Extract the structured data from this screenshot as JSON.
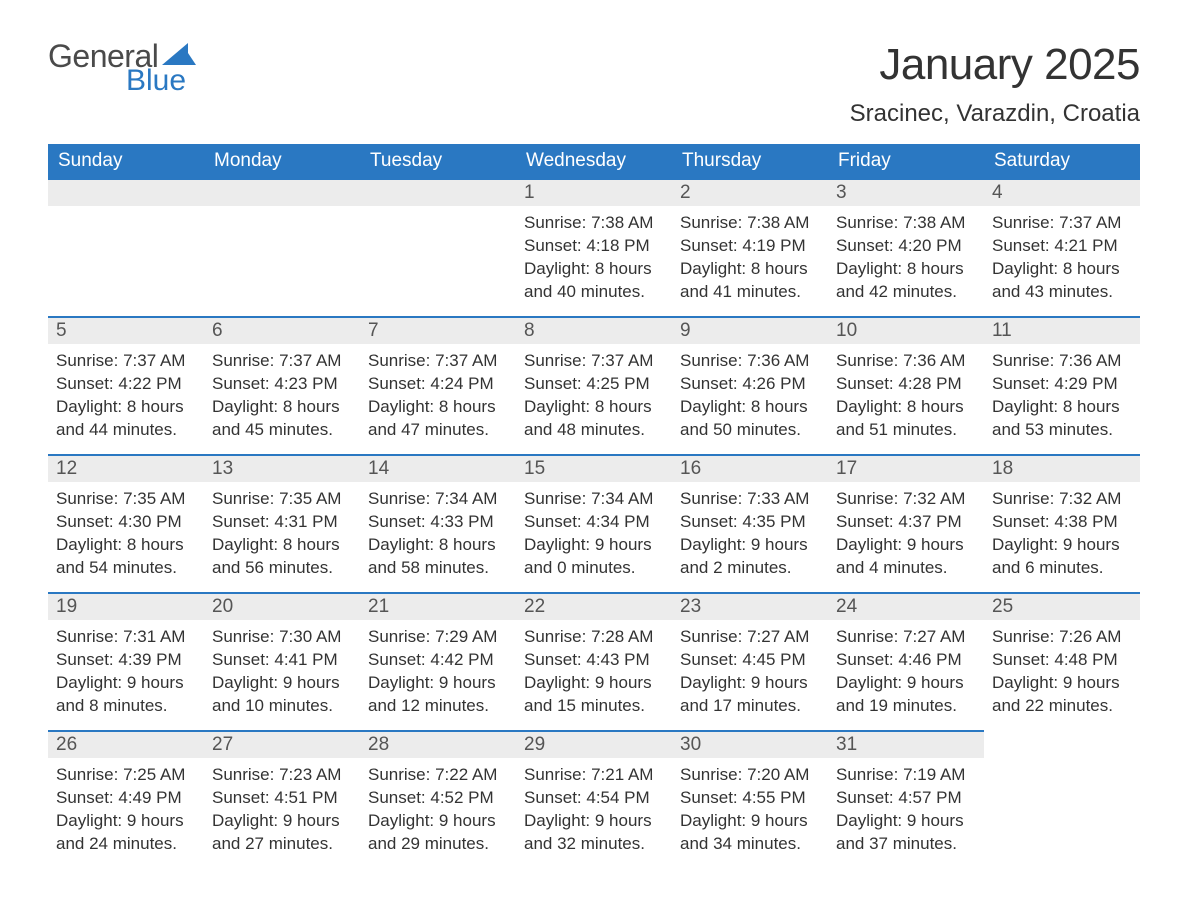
{
  "brand": {
    "general": "General",
    "blue": "Blue",
    "sail_color": "#2a78c2"
  },
  "header": {
    "month_title": "January 2025",
    "location": "Sracinec, Varazdin, Croatia"
  },
  "colors": {
    "header_bg": "#2a78c2",
    "header_text": "#ffffff",
    "daynum_bg": "#ececec",
    "daynum_border": "#2a78c2",
    "body_text": "#333333",
    "page_bg": "#ffffff"
  },
  "typography": {
    "title_fontsize": 44,
    "location_fontsize": 24,
    "weekday_fontsize": 19,
    "daynum_fontsize": 19,
    "body_fontsize": 17,
    "font_family": "Segoe UI"
  },
  "calendar": {
    "type": "calendar-table",
    "columns": 7,
    "rows": 5,
    "aspect_ratio": "1188:918",
    "weekdays": [
      "Sunday",
      "Monday",
      "Tuesday",
      "Wednesday",
      "Thursday",
      "Friday",
      "Saturday"
    ],
    "weeks": [
      [
        null,
        null,
        null,
        {
          "n": "1",
          "sunrise": "Sunrise: 7:38 AM",
          "sunset": "Sunset: 4:18 PM",
          "day1": "Daylight: 8 hours",
          "day2": "and 40 minutes."
        },
        {
          "n": "2",
          "sunrise": "Sunrise: 7:38 AM",
          "sunset": "Sunset: 4:19 PM",
          "day1": "Daylight: 8 hours",
          "day2": "and 41 minutes."
        },
        {
          "n": "3",
          "sunrise": "Sunrise: 7:38 AM",
          "sunset": "Sunset: 4:20 PM",
          "day1": "Daylight: 8 hours",
          "day2": "and 42 minutes."
        },
        {
          "n": "4",
          "sunrise": "Sunrise: 7:37 AM",
          "sunset": "Sunset: 4:21 PM",
          "day1": "Daylight: 8 hours",
          "day2": "and 43 minutes."
        }
      ],
      [
        {
          "n": "5",
          "sunrise": "Sunrise: 7:37 AM",
          "sunset": "Sunset: 4:22 PM",
          "day1": "Daylight: 8 hours",
          "day2": "and 44 minutes."
        },
        {
          "n": "6",
          "sunrise": "Sunrise: 7:37 AM",
          "sunset": "Sunset: 4:23 PM",
          "day1": "Daylight: 8 hours",
          "day2": "and 45 minutes."
        },
        {
          "n": "7",
          "sunrise": "Sunrise: 7:37 AM",
          "sunset": "Sunset: 4:24 PM",
          "day1": "Daylight: 8 hours",
          "day2": "and 47 minutes."
        },
        {
          "n": "8",
          "sunrise": "Sunrise: 7:37 AM",
          "sunset": "Sunset: 4:25 PM",
          "day1": "Daylight: 8 hours",
          "day2": "and 48 minutes."
        },
        {
          "n": "9",
          "sunrise": "Sunrise: 7:36 AM",
          "sunset": "Sunset: 4:26 PM",
          "day1": "Daylight: 8 hours",
          "day2": "and 50 minutes."
        },
        {
          "n": "10",
          "sunrise": "Sunrise: 7:36 AM",
          "sunset": "Sunset: 4:28 PM",
          "day1": "Daylight: 8 hours",
          "day2": "and 51 minutes."
        },
        {
          "n": "11",
          "sunrise": "Sunrise: 7:36 AM",
          "sunset": "Sunset: 4:29 PM",
          "day1": "Daylight: 8 hours",
          "day2": "and 53 minutes."
        }
      ],
      [
        {
          "n": "12",
          "sunrise": "Sunrise: 7:35 AM",
          "sunset": "Sunset: 4:30 PM",
          "day1": "Daylight: 8 hours",
          "day2": "and 54 minutes."
        },
        {
          "n": "13",
          "sunrise": "Sunrise: 7:35 AM",
          "sunset": "Sunset: 4:31 PM",
          "day1": "Daylight: 8 hours",
          "day2": "and 56 minutes."
        },
        {
          "n": "14",
          "sunrise": "Sunrise: 7:34 AM",
          "sunset": "Sunset: 4:33 PM",
          "day1": "Daylight: 8 hours",
          "day2": "and 58 minutes."
        },
        {
          "n": "15",
          "sunrise": "Sunrise: 7:34 AM",
          "sunset": "Sunset: 4:34 PM",
          "day1": "Daylight: 9 hours",
          "day2": "and 0 minutes."
        },
        {
          "n": "16",
          "sunrise": "Sunrise: 7:33 AM",
          "sunset": "Sunset: 4:35 PM",
          "day1": "Daylight: 9 hours",
          "day2": "and 2 minutes."
        },
        {
          "n": "17",
          "sunrise": "Sunrise: 7:32 AM",
          "sunset": "Sunset: 4:37 PM",
          "day1": "Daylight: 9 hours",
          "day2": "and 4 minutes."
        },
        {
          "n": "18",
          "sunrise": "Sunrise: 7:32 AM",
          "sunset": "Sunset: 4:38 PM",
          "day1": "Daylight: 9 hours",
          "day2": "and 6 minutes."
        }
      ],
      [
        {
          "n": "19",
          "sunrise": "Sunrise: 7:31 AM",
          "sunset": "Sunset: 4:39 PM",
          "day1": "Daylight: 9 hours",
          "day2": "and 8 minutes."
        },
        {
          "n": "20",
          "sunrise": "Sunrise: 7:30 AM",
          "sunset": "Sunset: 4:41 PM",
          "day1": "Daylight: 9 hours",
          "day2": "and 10 minutes."
        },
        {
          "n": "21",
          "sunrise": "Sunrise: 7:29 AM",
          "sunset": "Sunset: 4:42 PM",
          "day1": "Daylight: 9 hours",
          "day2": "and 12 minutes."
        },
        {
          "n": "22",
          "sunrise": "Sunrise: 7:28 AM",
          "sunset": "Sunset: 4:43 PM",
          "day1": "Daylight: 9 hours",
          "day2": "and 15 minutes."
        },
        {
          "n": "23",
          "sunrise": "Sunrise: 7:27 AM",
          "sunset": "Sunset: 4:45 PM",
          "day1": "Daylight: 9 hours",
          "day2": "and 17 minutes."
        },
        {
          "n": "24",
          "sunrise": "Sunrise: 7:27 AM",
          "sunset": "Sunset: 4:46 PM",
          "day1": "Daylight: 9 hours",
          "day2": "and 19 minutes."
        },
        {
          "n": "25",
          "sunrise": "Sunrise: 7:26 AM",
          "sunset": "Sunset: 4:48 PM",
          "day1": "Daylight: 9 hours",
          "day2": "and 22 minutes."
        }
      ],
      [
        {
          "n": "26",
          "sunrise": "Sunrise: 7:25 AM",
          "sunset": "Sunset: 4:49 PM",
          "day1": "Daylight: 9 hours",
          "day2": "and 24 minutes."
        },
        {
          "n": "27",
          "sunrise": "Sunrise: 7:23 AM",
          "sunset": "Sunset: 4:51 PM",
          "day1": "Daylight: 9 hours",
          "day2": "and 27 minutes."
        },
        {
          "n": "28",
          "sunrise": "Sunrise: 7:22 AM",
          "sunset": "Sunset: 4:52 PM",
          "day1": "Daylight: 9 hours",
          "day2": "and 29 minutes."
        },
        {
          "n": "29",
          "sunrise": "Sunrise: 7:21 AM",
          "sunset": "Sunset: 4:54 PM",
          "day1": "Daylight: 9 hours",
          "day2": "and 32 minutes."
        },
        {
          "n": "30",
          "sunrise": "Sunrise: 7:20 AM",
          "sunset": "Sunset: 4:55 PM",
          "day1": "Daylight: 9 hours",
          "day2": "and 34 minutes."
        },
        {
          "n": "31",
          "sunrise": "Sunrise: 7:19 AM",
          "sunset": "Sunset: 4:57 PM",
          "day1": "Daylight: 9 hours",
          "day2": "and 37 minutes."
        },
        null
      ]
    ]
  }
}
